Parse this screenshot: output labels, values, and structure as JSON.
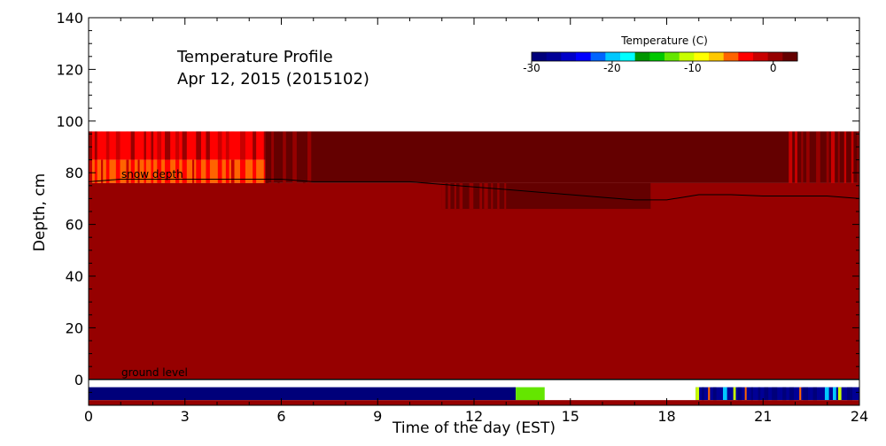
{
  "chart_data": {
    "type": "heatmap",
    "title": "Temperature Profile",
    "subtitle": "Apr 12, 2015 (2015102)",
    "xlabel": "Time of the day (EST)",
    "ylabel": "Depth, cm",
    "xlim": [
      0,
      24
    ],
    "ylim": [
      -10,
      140
    ],
    "xticks": [
      0,
      3,
      6,
      9,
      12,
      15,
      18,
      21,
      24
    ],
    "yticks": [
      0,
      20,
      40,
      60,
      80,
      100,
      120,
      140
    ],
    "annotations": {
      "snow_depth": "snow depth",
      "ground_level": "ground level"
    },
    "colorbar": {
      "label": "Temperature (C)",
      "range": [
        -30,
        3
      ],
      "ticks": [
        -30,
        -20,
        -10,
        0
      ],
      "colors": [
        "#00007a",
        "#000096",
        "#0000c8",
        "#0000ff",
        "#0064ff",
        "#00c8ff",
        "#00ffff",
        "#009600",
        "#00c800",
        "#64e600",
        "#c8ff00",
        "#ffff00",
        "#ffc800",
        "#ff6400",
        "#ff0000",
        "#c80000",
        "#960000",
        "#640000"
      ]
    },
    "regions": [
      {
        "name": "upper air sensors (85-96 cm)",
        "x": [
          0,
          5.5
        ],
        "y": [
          85,
          96
        ],
        "value": -3
      },
      {
        "name": "upper air sensors (76-85 cm)",
        "x": [
          0,
          5.5
        ],
        "y": [
          76,
          85
        ],
        "value": -6
      },
      {
        "name": "upper air sensors",
        "x": [
          5.5,
          24
        ],
        "y": [
          76,
          96
        ],
        "value": 2
      },
      {
        "name": "snowpack",
        "x": [
          0,
          24
        ],
        "y": [
          0,
          76
        ],
        "value": 0
      },
      {
        "name": "snow surface warm layer",
        "x": [
          11,
          17.5
        ],
        "y": [
          66,
          76
        ],
        "value": 2
      },
      {
        "name": "snow surface layer",
        "x": [
          17.5,
          24
        ],
        "y": [
          70,
          76
        ],
        "value": 0.5
      },
      {
        "name": "ground sensor",
        "x": [
          0,
          13.3
        ],
        "y": [
          -8,
          -3
        ],
        "value": -30
      },
      {
        "name": "ground sensor",
        "x": [
          13.3,
          14.2
        ],
        "y": [
          -8,
          -3
        ],
        "value": -12
      },
      {
        "name": "ground sensor",
        "x": [
          18.9,
          24
        ],
        "y": [
          -8,
          -3
        ],
        "value": -27
      }
    ],
    "series": [
      {
        "name": "snow depth",
        "x": [
          0,
          1,
          2,
          3,
          4,
          5,
          6,
          7,
          8,
          9,
          10,
          11,
          12,
          13,
          14,
          15,
          16,
          17,
          18,
          19,
          20,
          21,
          22,
          23,
          24
        ],
        "y": [
          76.5,
          77.5,
          77.5,
          77.5,
          77.5,
          77.5,
          77.5,
          76.5,
          76.5,
          76.5,
          76.5,
          75.5,
          74.5,
          73.5,
          72.5,
          71.5,
          70.5,
          69.5,
          69.5,
          71.5,
          71.5,
          71.0,
          71.0,
          71.0,
          70.0
        ]
      }
    ],
    "ground_level": 0,
    "grid": false
  }
}
